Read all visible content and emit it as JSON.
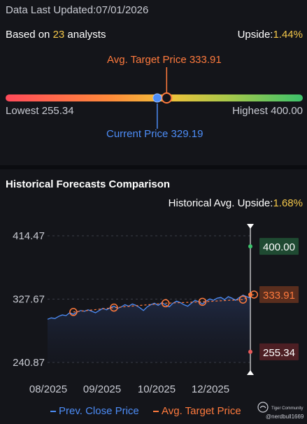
{
  "header": {
    "updated_label": "Data Last Updated:",
    "updated_date": "07/01/2026",
    "analysts_prefix": "Based on ",
    "analysts_count": "23",
    "analysts_suffix": " analysts",
    "upside_label": "Upside:",
    "upside_value": "1.44%"
  },
  "range": {
    "avg_label": "Avg. Target Price 333.91",
    "current_label": "Current Price 329.19",
    "lowest_label": "Lowest 255.34",
    "highest_label": "Highest 400.00",
    "low": 255.34,
    "high": 400.0,
    "avg": 333.91,
    "current": 329.19
  },
  "historical": {
    "title": "Historical Forecasts Comparison",
    "upside_label": "Historical Avg. Upside:",
    "upside_value": "1.68%"
  },
  "chart_data": {
    "type": "line",
    "y_ticks": [
      "414.47",
      "327.67",
      "240.87"
    ],
    "x_ticks": [
      "08/2025",
      "09/2025",
      "10/2025",
      "12/2025"
    ],
    "ylim": [
      240.87,
      414.47
    ],
    "series": [
      {
        "name": "Prev. Close Price",
        "color": "#4d8df7",
        "values": [
          300,
          302,
          301,
          304,
          306,
          305,
          309,
          307,
          310,
          312,
          311,
          313,
          311,
          309,
          312,
          315,
          313,
          316,
          318,
          315,
          317,
          320,
          318,
          321,
          319,
          316,
          312,
          317,
          320,
          322,
          319,
          323,
          320,
          317,
          322,
          325,
          323,
          320,
          318,
          322,
          326,
          324,
          321,
          325,
          328,
          326,
          329,
          330,
          327,
          331,
          329,
          326,
          330,
          333,
          331,
          329.19
        ]
      },
      {
        "name": "Avg. Target Price",
        "color": "#ff7a3d",
        "markers": [
          {
            "i": 7,
            "v": 310
          },
          {
            "i": 18,
            "v": 316
          },
          {
            "i": 32,
            "v": 322
          },
          {
            "i": 42,
            "v": 324
          },
          {
            "i": 53,
            "v": 327
          },
          {
            "i": 56,
            "v": 333.91
          }
        ]
      }
    ],
    "tags": [
      {
        "label": "400.00",
        "value": 400.0,
        "color": "#3cc26b",
        "bg": "#1f4a32"
      },
      {
        "label": "333.91",
        "value": 333.91,
        "color": "#ff7a3d",
        "bg": "#5a2e1e"
      },
      {
        "label": "255.34",
        "value": 255.34,
        "color": "#e85a5a",
        "bg": "#4d1f24"
      }
    ]
  },
  "legend": {
    "prev_label": "Prev. Close Price",
    "avg_label": "Avg. Target Price"
  },
  "watermark": {
    "brand": "Tiger Community",
    "user": "@nerdbull1669"
  }
}
